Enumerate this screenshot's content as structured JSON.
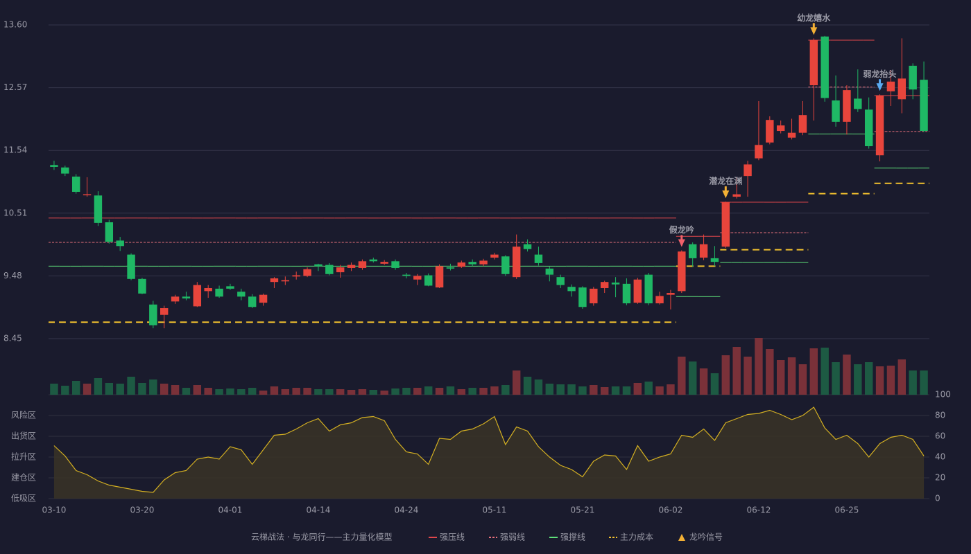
{
  "chart_data": {
    "type": "candlestick",
    "categories": [
      "03-10",
      null,
      null,
      null,
      null,
      null,
      null,
      null,
      "03-20",
      null,
      null,
      null,
      null,
      null,
      null,
      null,
      "04-01",
      null,
      null,
      null,
      null,
      null,
      null,
      null,
      "04-14",
      null,
      null,
      null,
      null,
      null,
      null,
      null,
      "04-24",
      null,
      null,
      null,
      null,
      null,
      null,
      null,
      "05-11",
      null,
      null,
      null,
      null,
      null,
      null,
      null,
      "05-21",
      null,
      null,
      null,
      null,
      null,
      null,
      null,
      "06-02",
      null,
      null,
      null,
      null,
      null,
      null,
      null,
      "06-12",
      null,
      null,
      null,
      null,
      null,
      null,
      null,
      "06-25",
      null,
      null,
      null,
      null,
      null,
      null,
      null
    ],
    "up_color": "#e8453c",
    "down_color": "#1fb865",
    "open": [
      11.3,
      11.26,
      11.11,
      10.81,
      10.8,
      10.36,
      10.06,
      9.83,
      9.43,
      9.01,
      8.84,
      9.06,
      9.14,
      8.98,
      9.23,
      9.27,
      9.31,
      9.22,
      9.14,
      9.04,
      9.38,
      9.39,
      9.47,
      9.48,
      9.67,
      9.66,
      9.54,
      9.61,
      9.61,
      9.75,
      9.68,
      9.72,
      9.5,
      9.42,
      9.49,
      9.29,
      9.62,
      9.63,
      9.71,
      9.67,
      9.78,
      9.8,
      9.46,
      10.0,
      9.83,
      9.6,
      9.46,
      9.3,
      9.29,
      9.03,
      9.28,
      9.37,
      9.35,
      9.04,
      9.5,
      9.03,
      9.17,
      9.23,
      10.0,
      9.78,
      9.77,
      9.96,
      10.78,
      11.12,
      11.41,
      11.67,
      11.86,
      11.75,
      11.83,
      12.61,
      13.41,
      12.36,
      12.01,
      12.39,
      12.21,
      11.46,
      12.51,
      12.38,
      12.93,
      12.7
    ],
    "high": [
      11.37,
      11.29,
      11.15,
      11.1,
      10.87,
      10.4,
      10.12,
      9.85,
      9.45,
      9.07,
      8.99,
      9.17,
      9.22,
      9.38,
      9.33,
      9.32,
      9.35,
      9.27,
      9.18,
      9.19,
      9.46,
      9.47,
      9.55,
      9.62,
      9.68,
      9.69,
      9.66,
      9.7,
      9.75,
      9.78,
      9.74,
      9.75,
      9.53,
      9.51,
      9.52,
      9.67,
      9.68,
      9.73,
      9.75,
      9.76,
      9.86,
      9.82,
      10.16,
      10.08,
      9.96,
      9.63,
      9.5,
      9.34,
      9.31,
      9.3,
      9.4,
      9.46,
      9.44,
      9.45,
      9.53,
      9.22,
      9.25,
      9.9,
      10.03,
      10.16,
      9.97,
      10.7,
      11.1,
      11.37,
      12.35,
      12.1,
      12.03,
      12.06,
      12.35,
      13.38,
      13.42,
      12.77,
      12.61,
      12.87,
      12.41,
      12.46,
      12.86,
      13.38,
      12.97,
      13.0
    ],
    "low": [
      11.22,
      11.12,
      10.83,
      10.78,
      10.3,
      10.01,
      9.89,
      9.41,
      9.18,
      8.62,
      8.62,
      9.02,
      9.08,
      8.97,
      9.12,
      9.12,
      9.25,
      9.08,
      8.95,
      8.99,
      9.28,
      9.33,
      9.42,
      9.46,
      9.56,
      9.49,
      9.45,
      9.56,
      9.58,
      9.7,
      9.66,
      9.58,
      9.44,
      9.33,
      9.31,
      9.28,
      9.57,
      9.61,
      9.64,
      9.64,
      9.75,
      9.48,
      9.43,
      9.88,
      9.65,
      9.39,
      9.28,
      9.14,
      8.94,
      8.99,
      9.2,
      9.13,
      9.0,
      9.02,
      9.0,
      9.01,
      8.93,
      9.2,
      9.63,
      9.74,
      9.64,
      9.94,
      10.75,
      10.78,
      11.38,
      11.64,
      11.82,
      11.72,
      11.79,
      12.03,
      12.34,
      11.93,
      11.8,
      12.17,
      11.57,
      11.36,
      12.27,
      12.15,
      12.38,
      11.84
    ],
    "close": [
      11.27,
      11.16,
      10.86,
      10.82,
      10.35,
      10.04,
      9.97,
      9.43,
      9.19,
      8.67,
      8.95,
      9.14,
      9.11,
      9.33,
      9.28,
      9.14,
      9.27,
      9.14,
      8.97,
      9.17,
      9.44,
      9.41,
      9.49,
      9.59,
      9.64,
      9.51,
      9.62,
      9.66,
      9.72,
      9.72,
      9.71,
      9.61,
      9.48,
      9.48,
      9.32,
      9.64,
      9.6,
      9.7,
      9.67,
      9.73,
      9.83,
      9.51,
      9.96,
      9.92,
      9.69,
      9.5,
      9.33,
      9.23,
      8.97,
      9.27,
      9.38,
      9.34,
      9.03,
      9.42,
      9.03,
      9.15,
      9.2,
      9.88,
      9.77,
      10.0,
      9.71,
      10.69,
      10.82,
      11.31,
      11.63,
      12.04,
      11.95,
      11.83,
      12.12,
      13.35,
      12.4,
      12.01,
      12.53,
      12.22,
      11.61,
      12.44,
      12.67,
      12.72,
      12.54,
      11.86
    ],
    "ylim": [
      8.45,
      13.6
    ],
    "yticks": [
      8.45,
      9.48,
      10.51,
      11.54,
      12.57,
      {
        "value": 13.6,
        "label": "13.60"
      }
    ],
    "grid": true,
    "volume": {
      "up_color": "#7a3139",
      "down_color": "#1d5a43",
      "values": [
        16,
        13,
        20,
        16,
        24,
        17,
        16,
        26,
        17,
        22,
        16,
        14,
        10,
        14,
        10,
        8,
        9,
        8,
        10,
        6,
        12,
        8,
        10,
        10,
        8,
        8,
        8,
        7,
        8,
        7,
        6,
        9,
        10,
        10,
        12,
        10,
        12,
        8,
        10,
        10,
        12,
        14,
        35,
        26,
        22,
        16,
        15,
        15,
        12,
        14,
        11,
        12,
        12,
        17,
        19,
        12,
        15,
        55,
        48,
        38,
        31,
        57,
        69,
        55,
        82,
        66,
        50,
        54,
        44,
        67,
        68,
        47,
        58,
        44,
        47,
        41,
        42,
        51,
        35,
        35
      ]
    },
    "levels": [
      {
        "name": "强压线",
        "color": "#e0474c",
        "dashed": false,
        "values": [
          10.43,
          10.43,
          10.43,
          10.43,
          10.43,
          10.43,
          10.43,
          10.43,
          10.43,
          10.43,
          10.43,
          10.43,
          10.43,
          10.43,
          10.43,
          10.43,
          10.43,
          10.43,
          10.43,
          10.43,
          10.43,
          10.43,
          10.43,
          10.43,
          10.43,
          10.43,
          10.43,
          10.43,
          10.43,
          10.43,
          10.43,
          10.43,
          10.43,
          10.43,
          10.43,
          10.43,
          10.43,
          10.43,
          10.43,
          10.43,
          10.43,
          10.43,
          10.43,
          10.43,
          10.43,
          10.43,
          10.43,
          10.43,
          10.43,
          10.43,
          10.43,
          10.43,
          10.43,
          10.43,
          10.43,
          10.43,
          10.43,
          10.13,
          10.13,
          10.13,
          10.13,
          10.69,
          10.69,
          10.69,
          10.69,
          10.69,
          10.69,
          10.69,
          10.69,
          13.35,
          13.35,
          13.35,
          13.35,
          13.35,
          13.35,
          12.44,
          12.44,
          12.44,
          12.44,
          12.44
        ]
      },
      {
        "name": "强弱线",
        "color": "#e8707c",
        "dashed": true,
        "values": [
          10.03,
          10.03,
          10.03,
          10.03,
          10.03,
          10.03,
          10.03,
          10.03,
          10.03,
          10.03,
          10.03,
          10.03,
          10.03,
          10.03,
          10.03,
          10.03,
          10.03,
          10.03,
          10.03,
          10.03,
          10.03,
          10.03,
          10.03,
          10.03,
          10.03,
          10.03,
          10.03,
          10.03,
          10.03,
          10.03,
          10.03,
          10.03,
          10.03,
          10.03,
          10.03,
          10.03,
          10.03,
          10.03,
          10.03,
          10.03,
          10.03,
          10.03,
          10.03,
          10.03,
          10.03,
          10.03,
          10.03,
          10.03,
          10.03,
          10.03,
          10.03,
          10.03,
          10.03,
          10.03,
          10.03,
          10.03,
          10.03,
          null,
          null,
          null,
          null,
          10.19,
          10.19,
          10.19,
          10.19,
          10.19,
          10.19,
          10.19,
          10.19,
          12.58,
          12.58,
          12.58,
          12.58,
          12.58,
          12.58,
          11.85,
          11.85,
          11.85,
          11.85,
          11.85
        ]
      },
      {
        "name": "强撑线",
        "color": "#5ee07a",
        "dashed": false,
        "values": [
          9.64,
          9.64,
          9.64,
          9.64,
          9.64,
          9.64,
          9.64,
          9.64,
          9.64,
          9.64,
          9.64,
          9.64,
          9.64,
          9.64,
          9.64,
          9.64,
          9.64,
          9.64,
          9.64,
          9.64,
          9.64,
          9.64,
          9.64,
          9.64,
          9.64,
          9.64,
          9.64,
          9.64,
          9.64,
          9.64,
          9.64,
          9.64,
          9.64,
          9.64,
          9.64,
          9.64,
          9.64,
          9.64,
          9.64,
          9.64,
          9.64,
          9.64,
          9.64,
          9.64,
          9.64,
          9.64,
          9.64,
          9.64,
          9.64,
          9.64,
          9.64,
          9.64,
          9.64,
          9.64,
          9.64,
          9.64,
          9.64,
          9.14,
          9.14,
          9.14,
          9.14,
          9.7,
          9.7,
          9.7,
          9.7,
          9.7,
          9.7,
          9.7,
          9.7,
          11.81,
          11.81,
          11.81,
          11.81,
          11.81,
          11.81,
          11.25,
          11.25,
          11.25,
          11.25,
          11.25
        ]
      },
      {
        "name": "主力成本",
        "color": "#f2c12e",
        "dashed": true,
        "values": [
          8.72,
          8.72,
          8.72,
          8.72,
          8.72,
          8.72,
          8.72,
          8.72,
          8.72,
          8.72,
          8.72,
          8.72,
          8.72,
          8.72,
          8.72,
          8.72,
          8.72,
          8.72,
          8.72,
          8.72,
          8.72,
          8.72,
          8.72,
          8.72,
          8.72,
          8.72,
          8.72,
          8.72,
          8.72,
          8.72,
          8.72,
          8.72,
          8.72,
          8.72,
          8.72,
          8.72,
          8.72,
          8.72,
          8.72,
          8.72,
          8.72,
          8.72,
          8.72,
          8.72,
          8.72,
          8.72,
          8.72,
          8.72,
          8.72,
          8.72,
          8.72,
          8.72,
          8.72,
          8.72,
          8.72,
          8.72,
          8.72,
          9.64,
          9.64,
          9.64,
          9.64,
          9.91,
          9.91,
          9.91,
          9.91,
          9.91,
          9.91,
          9.91,
          9.91,
          10.83,
          10.83,
          10.83,
          10.83,
          10.83,
          10.83,
          11,
          11,
          11,
          11,
          11
        ]
      }
    ],
    "signals": [
      null,
      null,
      null,
      null,
      null,
      null,
      null,
      null,
      null,
      null,
      null,
      null,
      null,
      null,
      null,
      null,
      null,
      null,
      null,
      null,
      null,
      null,
      null,
      null,
      null,
      null,
      null,
      null,
      null,
      null,
      null,
      null,
      null,
      null,
      null,
      null,
      null,
      null,
      null,
      null,
      null,
      null,
      null,
      null,
      null,
      null,
      null,
      null,
      null,
      null,
      null,
      null,
      null,
      null,
      null,
      null,
      null,
      {
        "label": "假龙吟",
        "color": "#f0606a"
      },
      null,
      null,
      null,
      {
        "label": "潜龙在渊",
        "color": "#f2b035"
      },
      null,
      null,
      null,
      null,
      null,
      null,
      null,
      {
        "label": "幼龙嬉水",
        "color": "#f2b035"
      },
      null,
      null,
      null,
      null,
      null,
      {
        "label": "弱龙抬头",
        "color": "#5aaaf0"
      },
      null,
      null,
      null,
      null
    ],
    "signal_name": "龙吟信号",
    "signal_color": "#f2b035",
    "indicator": {
      "color": "#d4b022",
      "values": [
        51,
        41,
        27,
        23,
        17,
        13,
        11,
        9,
        7,
        6,
        18,
        25,
        27,
        38,
        40,
        38,
        50,
        47,
        33,
        47,
        61,
        62,
        67,
        73,
        77,
        65,
        71,
        73,
        78,
        79,
        75,
        57,
        45,
        43,
        33,
        58,
        57,
        65,
        67,
        72,
        79,
        52,
        69,
        65,
        50,
        40,
        32,
        28,
        21,
        36,
        42,
        41,
        28,
        51,
        36,
        40,
        43,
        61,
        59,
        67,
        56,
        73,
        77,
        81,
        82,
        85,
        81,
        76,
        80,
        88,
        68,
        57,
        61,
        53,
        40,
        53,
        59,
        61,
        57,
        41
      ],
      "ylim": [
        0,
        100
      ],
      "yticks": [
        0,
        20,
        40,
        60,
        80,
        100
      ],
      "ytick_colors": [
        "#f04848",
        "#f06a40",
        "#5aa0f0",
        "#e040e0",
        "#f0a030",
        "#40e060"
      ],
      "zones": [
        {
          "value": 80,
          "label": "风险区",
          "color": "#f0a030"
        },
        {
          "value": 60,
          "label": "出货区",
          "color": "#e040e0"
        },
        {
          "value": 40,
          "label": "拉升区",
          "color": "#5aa0f0"
        },
        {
          "value": 20,
          "label": "建仓区",
          "color": "#f06a60"
        },
        {
          "value": 0,
          "label": "低吸区",
          "color": "#f04848"
        }
      ]
    },
    "legend_title": "云梯战法 · 与龙同行——主力量化模型"
  }
}
